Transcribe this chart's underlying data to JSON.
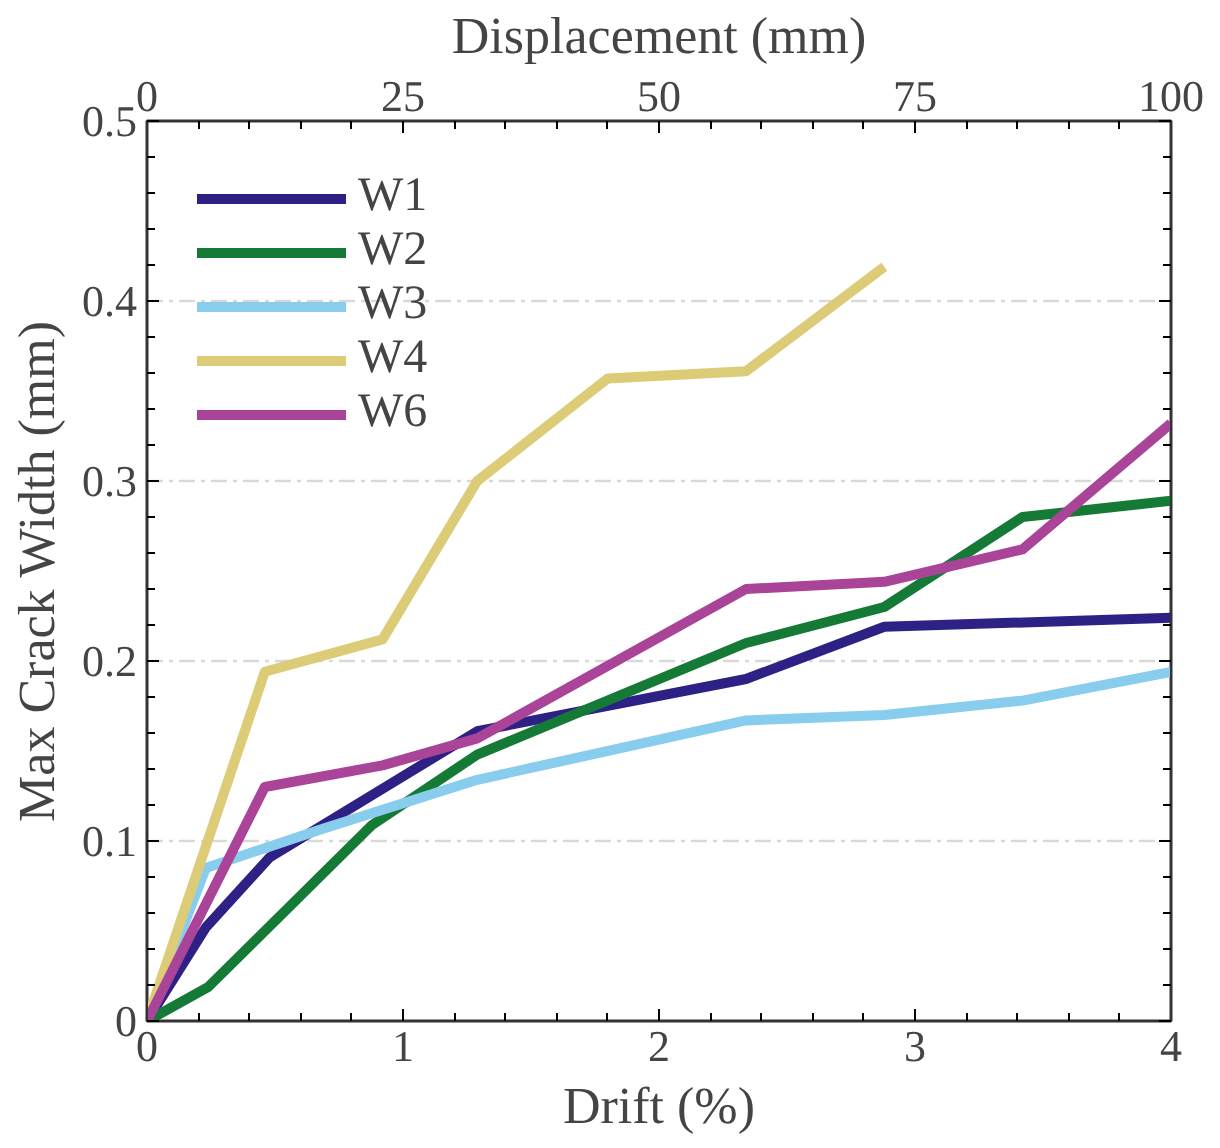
{
  "chart_data": {
    "type": "line",
    "xlabel": "Drift (%)",
    "ylabel": "Max Crack Width (mm)",
    "x2label": "Displacement (mm)",
    "xlim": [
      0,
      4
    ],
    "xticks": [
      0,
      1,
      2,
      3,
      4
    ],
    "ylim": [
      0,
      0.5
    ],
    "yticks": [
      0,
      0.1,
      0.2,
      0.3,
      0.4,
      0.5
    ],
    "x2lim": [
      0,
      100
    ],
    "x2ticks": [
      0,
      25,
      50,
      75,
      100
    ],
    "grid": "y",
    "legend": "top left",
    "marker": "none",
    "line_style": "solid",
    "series": [
      {
        "name": "W1",
        "color": "#2e2185",
        "x": [
          0,
          0.23,
          0.48,
          1.29,
          2.34,
          2.88,
          4.0
        ],
        "values": [
          0,
          0.052,
          0.091,
          0.161,
          0.19,
          0.219,
          0.224
        ]
      },
      {
        "name": "W2",
        "color": "#157a35",
        "x": [
          0,
          0.24,
          0.88,
          1.29,
          2.34,
          2.88,
          3.42,
          4.0
        ],
        "values": [
          0,
          0.019,
          0.109,
          0.148,
          0.21,
          0.23,
          0.28,
          0.289
        ]
      },
      {
        "name": "W3",
        "color": "#88ccee",
        "x": [
          0,
          0.23,
          0.48,
          0.69,
          1.29,
          2.34,
          2.88,
          3.42,
          4.0
        ],
        "values": [
          0,
          0.085,
          0.097,
          0.107,
          0.134,
          0.167,
          0.17,
          0.178,
          0.194
        ]
      },
      {
        "name": "W4",
        "color": "#ddcc77",
        "x": [
          0,
          0.46,
          0.92,
          1.29,
          1.8,
          2.34,
          2.88
        ],
        "values": [
          0,
          0.194,
          0.212,
          0.3,
          0.357,
          0.361,
          0.419
        ]
      },
      {
        "name": "W6",
        "color": "#aa4499",
        "x": [
          0,
          0.46,
          0.92,
          1.29,
          2.34,
          2.88,
          3.42,
          4.0
        ],
        "values": [
          0,
          0.13,
          0.142,
          0.157,
          0.24,
          0.244,
          0.262,
          0.332
        ]
      }
    ]
  }
}
